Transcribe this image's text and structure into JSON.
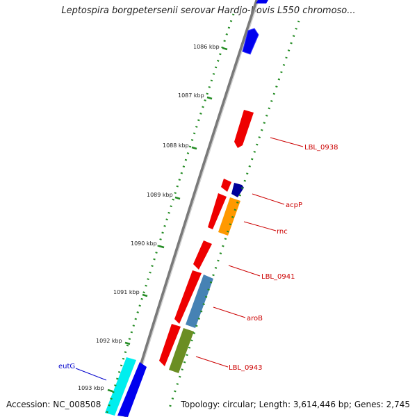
{
  "title": "Leptospira borgpetersenii serovar Hardjo-bovis L550 chromoso...",
  "footer": {
    "accession": "Accession: NC_008508",
    "topology": "Topology: circular; Length: 3,614,446 bp; Genes: 2,745"
  },
  "ruler": {
    "unit": "kbp",
    "ticks": [
      "1086 kbp",
      "1087 kbp",
      "1088 kbp",
      "1089 kbp",
      "1090 kbp",
      "1091 kbp",
      "1092 kbp",
      "1093 kbp"
    ]
  },
  "genes": [
    {
      "name": "LBL_0938",
      "strand": "minus",
      "color": "#ff0000"
    },
    {
      "name": "acpP",
      "strand": "plus",
      "color": "#000099"
    },
    {
      "name": "rnc",
      "strand": "plus",
      "color": "#ff9900"
    },
    {
      "name": "LBL_0941",
      "strand": "minus",
      "color": "#ff0000"
    },
    {
      "name": "aroB",
      "strand": "plus",
      "color": "#4682b4"
    },
    {
      "name": "LBL_0943",
      "strand": "plus",
      "color": "#6b8e23"
    },
    {
      "name": "eutG",
      "strand": "plus",
      "color": "#00ffff"
    }
  ],
  "colors": {
    "backbone": "#888888",
    "gc_dots": "#228b22",
    "label_red": "#cc0000",
    "label_blue": "#0000cc"
  }
}
